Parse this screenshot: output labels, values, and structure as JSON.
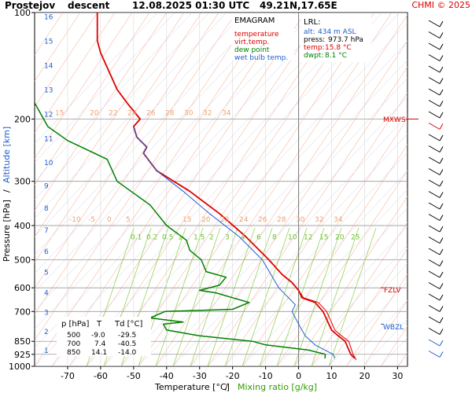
{
  "header": {
    "station": "Prostejov",
    "sounding": "descent",
    "datetime": "12.08.2025 01:30 UTC",
    "coords": "49.21N,17.65E",
    "credit": "CHMI © 2025"
  },
  "legend": {
    "title": "EMAGRAM",
    "items": [
      {
        "label": "temperature",
        "color": "#e00000"
      },
      {
        "label": "virt.temp.",
        "color": "#e00000"
      },
      {
        "label": "dew point",
        "color": "#008000"
      },
      {
        "label": "wet bulb temp.",
        "color": "#1f5fd0"
      }
    ]
  },
  "lrl": {
    "title": "LRL:",
    "alt_label": "alt:",
    "alt_value": "434 m ASL",
    "press_label": "press:",
    "press_value": "973.7 hPa",
    "temp_label": "temp:",
    "temp_value": "15.8 °C",
    "dwpt_label": "dwpt:",
    "dwpt_value": "8.1 °C"
  },
  "axes": {
    "xlabel_main": "Temperature [°C]",
    "xlabel_sep": "/",
    "xlabel_mix": "Mixing ratio [g/kg]",
    "ylabel_pressure": "Pressure [hPa]",
    "ylabel_sep": "/",
    "ylabel_altitude": "Altitude [km]"
  },
  "levels": {
    "mxws": "MXWS",
    "fzlv": "FZLV",
    "wbzl": "WBZL"
  },
  "table": {
    "headers": [
      "p [hPa]",
      "T",
      "Td [°C]"
    ],
    "rows": [
      [
        "500",
        "-9.0",
        "-29.5"
      ],
      [
        "700",
        "7.4",
        "-40.5"
      ],
      [
        "850",
        "14.1",
        "-14.0"
      ]
    ]
  },
  "chart_data": {
    "type": "line",
    "x_axis": {
      "label": "Temperature [°C]",
      "range": [
        -80,
        33
      ],
      "ticks": [
        -70,
        -60,
        -50,
        -40,
        -30,
        -20,
        -10,
        0,
        10,
        20,
        30
      ]
    },
    "y_axis": {
      "label": "Pressure [hPa]",
      "scale": "log",
      "range": [
        1000,
        100
      ],
      "ticks": [
        100,
        200,
        300,
        400,
        500,
        600,
        700,
        850,
        925,
        1000
      ]
    },
    "altitude_km_ticks": [
      1,
      2,
      3,
      4,
      5,
      6,
      7,
      8,
      9,
      10,
      11,
      12,
      13,
      14,
      15,
      16
    ],
    "mixing_ratio_labels": [
      "0.1",
      "0.2",
      "0.5",
      "1",
      "1.5",
      "2",
      "3",
      "4",
      "6",
      "8",
      "10",
      "12",
      "15",
      "20",
      "25"
    ],
    "isotherm_labels_upper": [
      "15",
      "20",
      "22",
      "24",
      "26",
      "28",
      "30",
      "32",
      "34"
    ],
    "isotherm_labels_mid": [
      "-10",
      "-5",
      "0",
      "5",
      "15",
      "20",
      "22",
      "24",
      "26",
      "28",
      "30",
      "32",
      "34"
    ],
    "grid": true,
    "levels": {
      "MXWS": 200,
      "FZLV": 600,
      "WBZL": 760
    },
    "series": [
      {
        "name": "temperature",
        "color": "#e00000",
        "points": [
          [
            17,
            950
          ],
          [
            15.8,
            925
          ],
          [
            14.1,
            850
          ],
          [
            12,
            820
          ],
          [
            10,
            790
          ],
          [
            7.4,
            700
          ],
          [
            5,
            660
          ],
          [
            1,
            640
          ],
          [
            0,
            610
          ],
          [
            -2,
            580
          ],
          [
            -5,
            550
          ],
          [
            -9,
            500
          ],
          [
            -16,
            430
          ],
          [
            -24,
            370
          ],
          [
            -33,
            320
          ],
          [
            -43,
            280
          ],
          [
            -47,
            250
          ],
          [
            -46,
            240
          ],
          [
            -49,
            225
          ],
          [
            -50,
            210
          ],
          [
            -48,
            200
          ],
          [
            -52,
            180
          ],
          [
            -55,
            165
          ],
          [
            -57,
            150
          ],
          [
            -60,
            130
          ],
          [
            -61,
            120
          ],
          [
            -61,
            100
          ]
        ]
      },
      {
        "name": "virt.temp.",
        "color": "#e00000",
        "points": [
          [
            17.5,
            960
          ],
          [
            16.5,
            925
          ],
          [
            15.2,
            850
          ],
          [
            13,
            820
          ],
          [
            11,
            790
          ],
          [
            8.5,
            700
          ],
          [
            6,
            660
          ],
          [
            1.5,
            640
          ],
          [
            0,
            610
          ],
          [
            -2,
            580
          ],
          [
            -5,
            550
          ],
          [
            -9,
            500
          ],
          [
            -16,
            430
          ],
          [
            -24,
            370
          ],
          [
            -33,
            320
          ],
          [
            -43,
            280
          ],
          [
            -47,
            250
          ],
          [
            -46,
            240
          ],
          [
            -49,
            225
          ],
          [
            -50,
            210
          ],
          [
            -48,
            200
          ],
          [
            -52,
            180
          ],
          [
            -55,
            165
          ],
          [
            -57,
            150
          ],
          [
            -60,
            130
          ],
          [
            -61,
            120
          ],
          [
            -61,
            100
          ]
        ]
      },
      {
        "name": "dew point",
        "color": "#008000",
        "points": [
          [
            8,
            950
          ],
          [
            8.1,
            925
          ],
          [
            3,
            900
          ],
          [
            -10,
            870
          ],
          [
            -14,
            850
          ],
          [
            -30,
            820
          ],
          [
            -40,
            790
          ],
          [
            -41,
            760
          ],
          [
            -35,
            750
          ],
          [
            -45,
            730
          ],
          [
            -40.5,
            700
          ],
          [
            -20,
            690
          ],
          [
            -15,
            660
          ],
          [
            -20,
            640
          ],
          [
            -25,
            620
          ],
          [
            -30,
            610
          ],
          [
            -24,
            590
          ],
          [
            -22,
            560
          ],
          [
            -28,
            540
          ],
          [
            -29.5,
            500
          ],
          [
            -33,
            470
          ],
          [
            -34,
            440
          ],
          [
            -40,
            400
          ],
          [
            -45,
            350
          ],
          [
            -55,
            300
          ],
          [
            -58,
            260
          ],
          [
            -70,
            230
          ],
          [
            -76,
            210
          ],
          [
            -80,
            180
          ]
        ]
      },
      {
        "name": "wet bulb temp.",
        "color": "#1f5fd0",
        "points": [
          [
            11,
            950
          ],
          [
            10.5,
            925
          ],
          [
            8,
            900
          ],
          [
            5,
            870
          ],
          [
            2,
            820
          ],
          [
            0,
            760
          ],
          [
            -2,
            700
          ],
          [
            -1,
            670
          ],
          [
            -6,
            600
          ],
          [
            -11,
            500
          ],
          [
            -18,
            430
          ],
          [
            -27,
            370
          ],
          [
            -35,
            320
          ],
          [
            -43,
            280
          ],
          [
            -47,
            250
          ],
          [
            -46,
            240
          ],
          [
            -49,
            225
          ],
          [
            -50,
            210
          ]
        ]
      }
    ],
    "wind_barbs": "present on right-hand strip"
  }
}
